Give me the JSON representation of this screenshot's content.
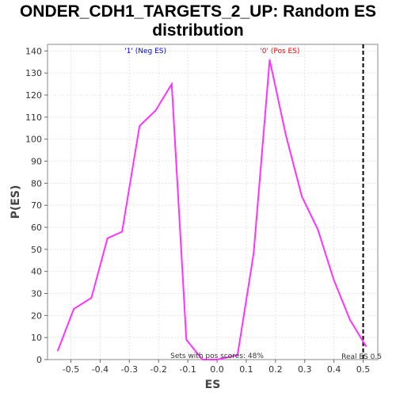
{
  "chart_data": {
    "type": "line",
    "title_line1": "ONDER_CDH1_TARGETS_2_UP: Random ES",
    "title_line2": "distribution",
    "xlabel": "ES",
    "ylabel": "P(ES)",
    "xlim": [
      -0.58,
      0.55
    ],
    "ylim": [
      0,
      143
    ],
    "xticks": [
      -0.5,
      -0.4,
      -0.3,
      -0.2,
      -0.1,
      0.0,
      0.1,
      0.2,
      0.3,
      0.4,
      0.5
    ],
    "xtick_labels": [
      "-0.5",
      "-0.4",
      "-0.3",
      "-0.2",
      "-0.1",
      "0.0",
      "0.1",
      "0.2",
      "0.3",
      "0.4",
      "0.5"
    ],
    "yticks": [
      0,
      10,
      20,
      30,
      40,
      50,
      60,
      70,
      80,
      90,
      100,
      110,
      120,
      130,
      140
    ],
    "grid": true,
    "line_color": "#ff33ff",
    "series": [
      {
        "x": [
          -0.545,
          -0.49,
          -0.43,
          -0.375,
          -0.325,
          -0.265,
          -0.21,
          -0.155,
          -0.105,
          -0.05,
          0.0,
          0.07,
          0.125,
          0.18,
          0.235,
          0.29,
          0.345,
          0.4,
          0.455,
          0.51
        ],
        "y": [
          4,
          23,
          28,
          55,
          58,
          106,
          113,
          125,
          9,
          0,
          0,
          2,
          48,
          136,
          102,
          74,
          59,
          36,
          18,
          6
        ]
      }
    ],
    "annotations": [
      {
        "text": "'1' (Neg ES)",
        "x": -0.245,
        "y": 139,
        "color": "#0000ff"
      },
      {
        "text": "'0' (Pos ES)",
        "x": 0.215,
        "y": 139,
        "color": "#ff0000"
      }
    ],
    "real_es": {
      "x": 0.5,
      "label": "Real ES 0.5",
      "color": "#000000"
    },
    "footnote": "Sets with pos scores: 48%"
  }
}
